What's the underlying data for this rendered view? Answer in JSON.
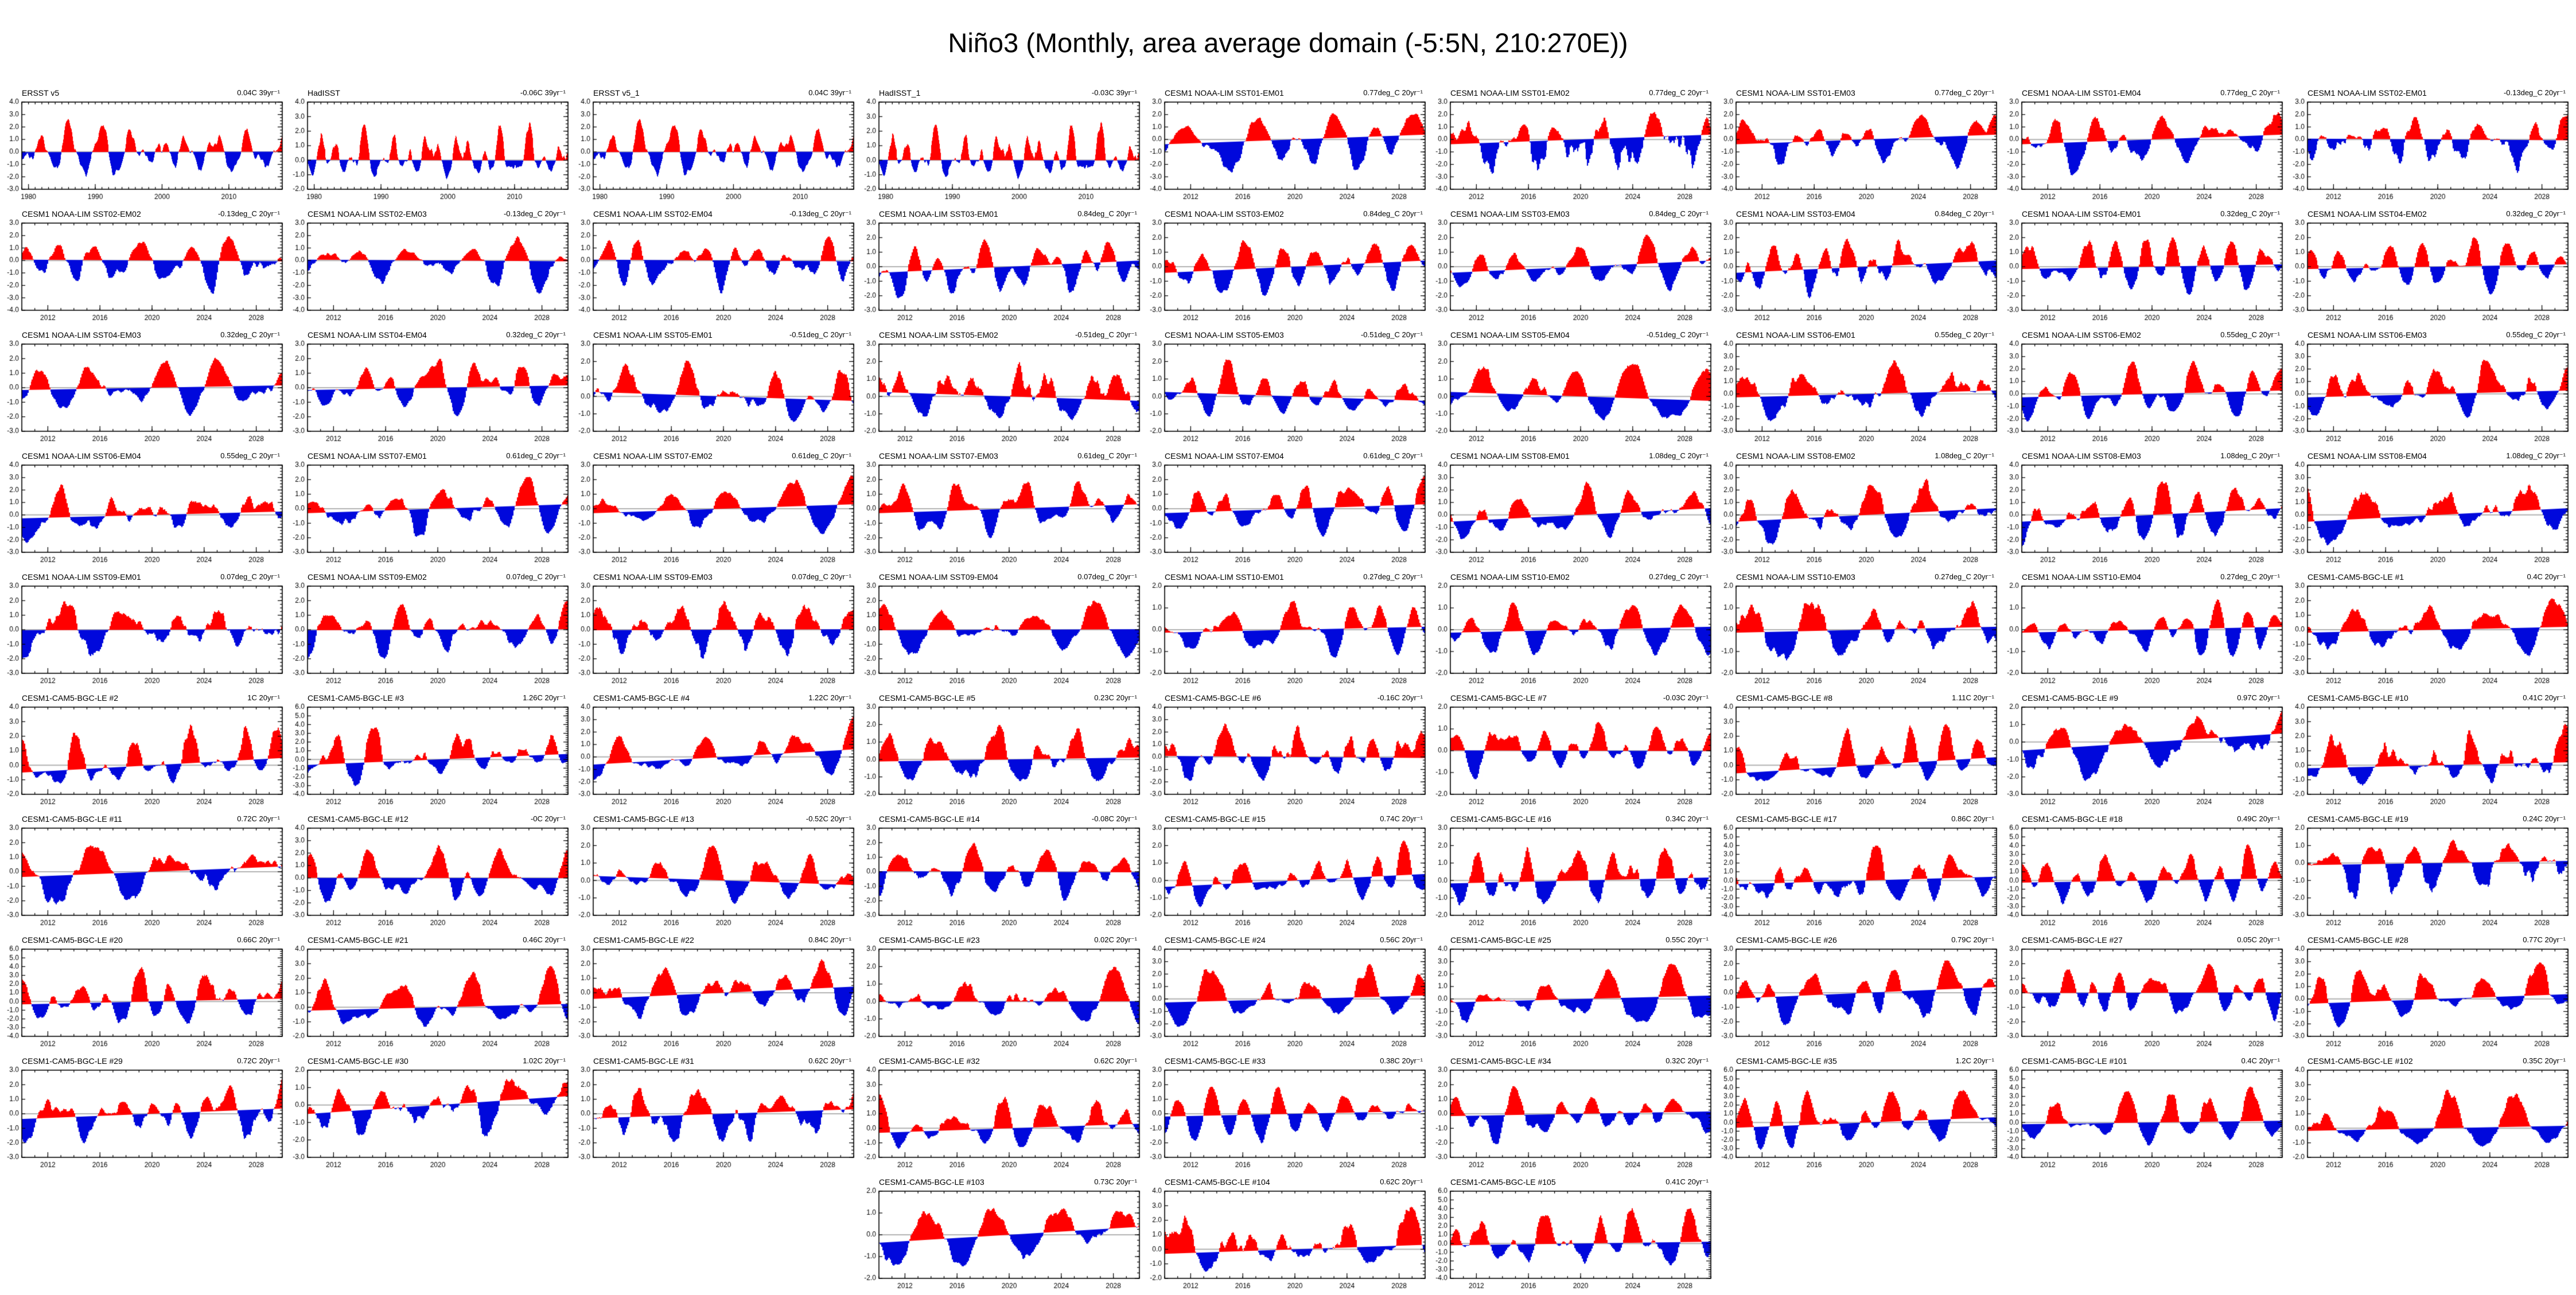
{
  "page": {
    "title": "Niño3 (Monthly, area average domain (-5:5N, 210:270E))",
    "background": "#ffffff"
  },
  "chart_data": {
    "type": "area",
    "description": "Small-multiples grid of monthly Niño3 SST anomaly time series. Each panel: anomalies filled red above the linear trend baseline and blue below it, gray horizontal line at zero, linear trend printed at top right.",
    "layout": {
      "columns": 9,
      "rows": 10,
      "last_row_columns": [
        4,
        5,
        6
      ],
      "grid": true,
      "legend": "none"
    },
    "colors": {
      "positive_fill": "#ff0000",
      "negative_fill": "#0008dc",
      "zero_line": "#b3b3b3",
      "frame": "#000000",
      "text": "#000000"
    },
    "x_obs": {
      "range": [
        1979,
        2018
      ],
      "ticks": [
        1980,
        1990,
        2000,
        2010
      ]
    },
    "x_model": {
      "range": [
        2010,
        2030
      ],
      "ticks": [
        2012,
        2016,
        2020,
        2024,
        2028
      ]
    },
    "y_tick_step": 1.0,
    "units": "deg C anomaly",
    "panels": [
      {
        "title": "ERSST v5",
        "trend": "0.04C 39yr⁻¹",
        "t": 0.04,
        "ylo": -3,
        "yhi": 4,
        "era": "obs",
        "seed": 1
      },
      {
        "title": "HadISST",
        "trend": "-0.06C 39yr⁻¹",
        "t": -0.06,
        "ylo": -2,
        "yhi": 4,
        "era": "obs",
        "seed": 2
      },
      {
        "title": "ERSST v5_1",
        "trend": "0.04C 39yr⁻¹",
        "t": 0.04,
        "ylo": -3,
        "yhi": 4,
        "era": "obs",
        "seed": 1
      },
      {
        "title": "HadISST_1",
        "trend": "-0.03C 39yr⁻¹",
        "t": -0.03,
        "ylo": -2,
        "yhi": 4,
        "era": "obs",
        "seed": 2
      },
      {
        "title": "CESM1 NOAA-LIM SST01-EM01",
        "trend": "0.77deg_C 20yr⁻¹",
        "t": 0.77,
        "ylo": -4,
        "yhi": 3,
        "era": "model",
        "seed": 5
      },
      {
        "title": "CESM1 NOAA-LIM SST01-EM02",
        "trend": "0.77deg_C 20yr⁻¹",
        "t": 0.77,
        "ylo": -4,
        "yhi": 3,
        "era": "model",
        "seed": 6
      },
      {
        "title": "CESM1 NOAA-LIM SST01-EM03",
        "trend": "0.77deg_C 20yr⁻¹",
        "t": 0.77,
        "ylo": -4,
        "yhi": 3,
        "era": "model",
        "seed": 7
      },
      {
        "title": "CESM1 NOAA-LIM SST01-EM04",
        "trend": "0.77deg_C 20yr⁻¹",
        "t": 0.77,
        "ylo": -4,
        "yhi": 3,
        "era": "model",
        "seed": 8
      },
      {
        "title": "CESM1 NOAA-LIM SST02-EM01",
        "trend": "-0.13deg_C 20yr⁻¹",
        "t": -0.13,
        "ylo": -4,
        "yhi": 3,
        "era": "model",
        "seed": 9
      },
      {
        "title": "CESM1 NOAA-LIM SST02-EM02",
        "trend": "-0.13deg_C 20yr⁻¹",
        "t": -0.13,
        "ylo": -4,
        "yhi": 3,
        "era": "model",
        "seed": 10
      },
      {
        "title": "CESM1 NOAA-LIM SST02-EM03",
        "trend": "-0.13deg_C 20yr⁻¹",
        "t": -0.13,
        "ylo": -4,
        "yhi": 3,
        "era": "model",
        "seed": 11
      },
      {
        "title": "CESM1 NOAA-LIM SST02-EM04",
        "trend": "-0.13deg_C 20yr⁻¹",
        "t": -0.13,
        "ylo": -4,
        "yhi": 3,
        "era": "model",
        "seed": 12
      },
      {
        "title": "CESM1 NOAA-LIM SST03-EM01",
        "trend": "0.84deg_C 20yr⁻¹",
        "t": 0.84,
        "ylo": -3,
        "yhi": 3,
        "era": "model",
        "seed": 13
      },
      {
        "title": "CESM1 NOAA-LIM SST03-EM02",
        "trend": "0.84deg_C 20yr⁻¹",
        "t": 0.84,
        "ylo": -3,
        "yhi": 3,
        "era": "model",
        "seed": 14
      },
      {
        "title": "CESM1 NOAA-LIM SST03-EM03",
        "trend": "0.84deg_C 20yr⁻¹",
        "t": 0.84,
        "ylo": -3,
        "yhi": 3,
        "era": "model",
        "seed": 15
      },
      {
        "title": "CESM1 NOAA-LIM SST03-EM04",
        "trend": "0.84deg_C 20yr⁻¹",
        "t": 0.84,
        "ylo": -3,
        "yhi": 3,
        "era": "model",
        "seed": 16
      },
      {
        "title": "CESM1 NOAA-LIM SST04-EM01",
        "trend": "0.32deg_C 20yr⁻¹",
        "t": 0.32,
        "ylo": -3,
        "yhi": 3,
        "era": "model",
        "seed": 17
      },
      {
        "title": "CESM1 NOAA-LIM SST04-EM02",
        "trend": "0.32deg_C 20yr⁻¹",
        "t": 0.32,
        "ylo": -3,
        "yhi": 3,
        "era": "model",
        "seed": 18
      },
      {
        "title": "CESM1 NOAA-LIM SST04-EM03",
        "trend": "0.32deg_C 20yr⁻¹",
        "t": 0.32,
        "ylo": -3,
        "yhi": 3,
        "era": "model",
        "seed": 19
      },
      {
        "title": "CESM1 NOAA-LIM SST04-EM04",
        "trend": "0.32deg_C 20yr⁻¹",
        "t": 0.32,
        "ylo": -3,
        "yhi": 3,
        "era": "model",
        "seed": 20
      },
      {
        "title": "CESM1 NOAA-LIM SST05-EM01",
        "trend": "-0.51deg_C 20yr⁻¹",
        "t": -0.51,
        "ylo": -2,
        "yhi": 3,
        "era": "model",
        "seed": 21
      },
      {
        "title": "CESM1 NOAA-LIM SST05-EM02",
        "trend": "-0.51deg_C 20yr⁻¹",
        "t": -0.51,
        "ylo": -2,
        "yhi": 3,
        "era": "model",
        "seed": 22
      },
      {
        "title": "CESM1 NOAA-LIM SST05-EM03",
        "trend": "-0.51deg_C 20yr⁻¹",
        "t": -0.51,
        "ylo": -2,
        "yhi": 3,
        "era": "model",
        "seed": 23
      },
      {
        "title": "CESM1 NOAA-LIM SST05-EM04",
        "trend": "-0.51deg_C 20yr⁻¹",
        "t": -0.51,
        "ylo": -2,
        "yhi": 3,
        "era": "model",
        "seed": 24
      },
      {
        "title": "CESM1 NOAA-LIM SST06-EM01",
        "trend": "0.55deg_C 20yr⁻¹",
        "t": 0.55,
        "ylo": -3,
        "yhi": 4,
        "era": "model",
        "seed": 25
      },
      {
        "title": "CESM1 NOAA-LIM SST06-EM02",
        "trend": "0.55deg_C 20yr⁻¹",
        "t": 0.55,
        "ylo": -3,
        "yhi": 4,
        "era": "model",
        "seed": 26
      },
      {
        "title": "CESM1 NOAA-LIM SST06-EM03",
        "trend": "0.55deg_C 20yr⁻¹",
        "t": 0.55,
        "ylo": -3,
        "yhi": 4,
        "era": "model",
        "seed": 27
      },
      {
        "title": "CESM1 NOAA-LIM SST06-EM04",
        "trend": "0.55deg_C 20yr⁻¹",
        "t": 0.55,
        "ylo": -3,
        "yhi": 4,
        "era": "model",
        "seed": 28
      },
      {
        "title": "CESM1 NOAA-LIM SST07-EM01",
        "trend": "0.61deg_C 20yr⁻¹",
        "t": 0.61,
        "ylo": -3,
        "yhi": 3,
        "era": "model",
        "seed": 29
      },
      {
        "title": "CESM1 NOAA-LIM SST07-EM02",
        "trend": "0.61deg_C 20yr⁻¹",
        "t": 0.61,
        "ylo": -3,
        "yhi": 3,
        "era": "model",
        "seed": 30
      },
      {
        "title": "CESM1 NOAA-LIM SST07-EM03",
        "trend": "0.61deg_C 20yr⁻¹",
        "t": 0.61,
        "ylo": -3,
        "yhi": 3,
        "era": "model",
        "seed": 31
      },
      {
        "title": "CESM1 NOAA-LIM SST07-EM04",
        "trend": "0.61deg_C 20yr⁻¹",
        "t": 0.61,
        "ylo": -3,
        "yhi": 3,
        "era": "model",
        "seed": 32
      },
      {
        "title": "CESM1 NOAA-LIM SST08-EM01",
        "trend": "1.08deg_C 20yr⁻¹",
        "t": 1.08,
        "ylo": -3,
        "yhi": 4,
        "era": "model",
        "seed": 33
      },
      {
        "title": "CESM1 NOAA-LIM SST08-EM02",
        "trend": "1.08deg_C 20yr⁻¹",
        "t": 1.08,
        "ylo": -3,
        "yhi": 4,
        "era": "model",
        "seed": 34
      },
      {
        "title": "CESM1 NOAA-LIM SST08-EM03",
        "trend": "1.08deg_C 20yr⁻¹",
        "t": 1.08,
        "ylo": -3,
        "yhi": 4,
        "era": "model",
        "seed": 35
      },
      {
        "title": "CESM1 NOAA-LIM SST08-EM04",
        "trend": "1.08deg_C 20yr⁻¹",
        "t": 1.08,
        "ylo": -3,
        "yhi": 4,
        "era": "model",
        "seed": 36
      },
      {
        "title": "CESM1 NOAA-LIM SST09-EM01",
        "trend": "0.07deg_C 20yr⁻¹",
        "t": 0.07,
        "ylo": -3,
        "yhi": 3,
        "era": "model",
        "seed": 37
      },
      {
        "title": "CESM1 NOAA-LIM SST09-EM02",
        "trend": "0.07deg_C 20yr⁻¹",
        "t": 0.07,
        "ylo": -3,
        "yhi": 3,
        "era": "model",
        "seed": 38
      },
      {
        "title": "CESM1 NOAA-LIM SST09-EM03",
        "trend": "0.07deg_C 20yr⁻¹",
        "t": 0.07,
        "ylo": -3,
        "yhi": 3,
        "era": "model",
        "seed": 39
      },
      {
        "title": "CESM1 NOAA-LIM SST09-EM04",
        "trend": "0.07deg_C 20yr⁻¹",
        "t": 0.07,
        "ylo": -3,
        "yhi": 3,
        "era": "model",
        "seed": 40
      },
      {
        "title": "CESM1 NOAA-LIM SST10-EM01",
        "trend": "0.27deg_C 20yr⁻¹",
        "t": 0.27,
        "ylo": -2,
        "yhi": 2,
        "era": "model",
        "seed": 41
      },
      {
        "title": "CESM1 NOAA-LIM SST10-EM02",
        "trend": "0.27deg_C 20yr⁻¹",
        "t": 0.27,
        "ylo": -2,
        "yhi": 2,
        "era": "model",
        "seed": 42
      },
      {
        "title": "CESM1 NOAA-LIM SST10-EM03",
        "trend": "0.27deg_C 20yr⁻¹",
        "t": 0.27,
        "ylo": -2,
        "yhi": 2,
        "era": "model",
        "seed": 43
      },
      {
        "title": "CESM1 NOAA-LIM SST10-EM04",
        "trend": "0.27deg_C 20yr⁻¹",
        "t": 0.27,
        "ylo": -2,
        "yhi": 2,
        "era": "model",
        "seed": 44
      },
      {
        "title": "CESM1-CAM5-BGC-LE #1",
        "trend": "0.4C 20yr⁻¹",
        "t": 0.4,
        "ylo": -3,
        "yhi": 3,
        "era": "model",
        "seed": 45
      },
      {
        "title": "CESM1-CAM5-BGC-LE #2",
        "trend": "1C 20yr⁻¹",
        "t": 1.0,
        "ylo": -2,
        "yhi": 4,
        "era": "model",
        "seed": 46
      },
      {
        "title": "CESM1-CAM5-BGC-LE #3",
        "trend": "1.26C 20yr⁻¹",
        "t": 1.26,
        "ylo": -4,
        "yhi": 6,
        "era": "model",
        "seed": 47
      },
      {
        "title": "CESM1-CAM5-BGC-LE #4",
        "trend": "1.22C 20yr⁻¹",
        "t": 1.22,
        "ylo": -3,
        "yhi": 4,
        "era": "model",
        "seed": 48
      },
      {
        "title": "CESM1-CAM5-BGC-LE #5",
        "trend": "0.23C 20yr⁻¹",
        "t": 0.23,
        "ylo": -2,
        "yhi": 3,
        "era": "model",
        "seed": 49
      },
      {
        "title": "CESM1-CAM5-BGC-LE #6",
        "trend": "-0.16C 20yr⁻¹",
        "t": -0.16,
        "ylo": -3,
        "yhi": 4,
        "era": "model",
        "seed": 50
      },
      {
        "title": "CESM1-CAM5-BGC-LE #7",
        "trend": "-0.03C 20yr⁻¹",
        "t": -0.03,
        "ylo": -2,
        "yhi": 2,
        "era": "model",
        "seed": 51
      },
      {
        "title": "CESM1-CAM5-BGC-LE #8",
        "trend": "1.11C 20yr⁻¹",
        "t": 1.11,
        "ylo": -2,
        "yhi": 4,
        "era": "model",
        "seed": 52
      },
      {
        "title": "CESM1-CAM5-BGC-LE #9",
        "trend": "0.97C 20yr⁻¹",
        "t": 0.97,
        "ylo": -3,
        "yhi": 2,
        "era": "model",
        "seed": 53
      },
      {
        "title": "CESM1-CAM5-BGC-LE #10",
        "trend": "0.41C 20yr⁻¹",
        "t": 0.41,
        "ylo": -2,
        "yhi": 4,
        "era": "model",
        "seed": 54
      },
      {
        "title": "CESM1-CAM5-BGC-LE #11",
        "trend": "0.72C 20yr⁻¹",
        "t": 0.72,
        "ylo": -3,
        "yhi": 3,
        "era": "model",
        "seed": 55
      },
      {
        "title": "CESM1-CAM5-BGC-LE #12",
        "trend": "-0C 20yr⁻¹",
        "t": -0.02,
        "ylo": -3,
        "yhi": 4,
        "era": "model",
        "seed": 56
      },
      {
        "title": "CESM1-CAM5-BGC-LE #13",
        "trend": "-0.52C 20yr⁻¹",
        "t": -0.52,
        "ylo": -2,
        "yhi": 3,
        "era": "model",
        "seed": 57
      },
      {
        "title": "CESM1-CAM5-BGC-LE #14",
        "trend": "-0.08C 20yr⁻¹",
        "t": -0.08,
        "ylo": -3,
        "yhi": 3,
        "era": "model",
        "seed": 58
      },
      {
        "title": "CESM1-CAM5-BGC-LE #15",
        "trend": "0.74C 20yr⁻¹",
        "t": 0.74,
        "ylo": -2,
        "yhi": 3,
        "era": "model",
        "seed": 59
      },
      {
        "title": "CESM1-CAM5-BGC-LE #16",
        "trend": "0.34C 20yr⁻¹",
        "t": 0.34,
        "ylo": -2,
        "yhi": 3,
        "era": "model",
        "seed": 60
      },
      {
        "title": "CESM1-CAM5-BGC-LE #17",
        "trend": "0.86C 20yr⁻¹",
        "t": 0.86,
        "ylo": -4,
        "yhi": 6,
        "era": "model",
        "seed": 61
      },
      {
        "title": "CESM1-CAM5-BGC-LE #18",
        "trend": "0.49C 20yr⁻¹",
        "t": 0.49,
        "ylo": -4,
        "yhi": 6,
        "era": "model",
        "seed": 62
      },
      {
        "title": "CESM1-CAM5-BGC-LE #19",
        "trend": "0.24C 20yr⁻¹",
        "t": 0.24,
        "ylo": -3,
        "yhi": 2,
        "era": "model",
        "seed": 63
      },
      {
        "title": "CESM1-CAM5-BGC-LE #20",
        "trend": "0.66C 20yr⁻¹",
        "t": 0.66,
        "ylo": -4,
        "yhi": 6,
        "era": "model",
        "seed": 64
      },
      {
        "title": "CESM1-CAM5-BGC-LE #21",
        "trend": "0.46C 20yr⁻¹",
        "t": 0.46,
        "ylo": -2,
        "yhi": 4,
        "era": "model",
        "seed": 65
      },
      {
        "title": "CESM1-CAM5-BGC-LE #22",
        "trend": "0.84C 20yr⁻¹",
        "t": 0.84,
        "ylo": -3,
        "yhi": 3,
        "era": "model",
        "seed": 66
      },
      {
        "title": "CESM1-CAM5-BGC-LE #23",
        "trend": "0.02C 20yr⁻¹",
        "t": 0.02,
        "ylo": -2,
        "yhi": 3,
        "era": "model",
        "seed": 67
      },
      {
        "title": "CESM1-CAM5-BGC-LE #24",
        "trend": "0.56C 20yr⁻¹",
        "t": 0.56,
        "ylo": -3,
        "yhi": 4,
        "era": "model",
        "seed": 68
      },
      {
        "title": "CESM1-CAM5-BGC-LE #25",
        "trend": "0.55C 20yr⁻¹",
        "t": 0.55,
        "ylo": -3,
        "yhi": 4,
        "era": "model",
        "seed": 69
      },
      {
        "title": "CESM1-CAM5-BGC-LE #26",
        "trend": "0.79C 20yr⁻¹",
        "t": 0.79,
        "ylo": -3,
        "yhi": 3,
        "era": "model",
        "seed": 70
      },
      {
        "title": "CESM1-CAM5-BGC-LE #27",
        "trend": "0.05C 20yr⁻¹",
        "t": 0.05,
        "ylo": -3,
        "yhi": 3,
        "era": "model",
        "seed": 71
      },
      {
        "title": "CESM1-CAM5-BGC-LE #28",
        "trend": "0.77C 20yr⁻¹",
        "t": 0.77,
        "ylo": -3,
        "yhi": 4,
        "era": "model",
        "seed": 72
      },
      {
        "title": "CESM1-CAM5-BGC-LE #29",
        "trend": "0.72C 20yr⁻¹",
        "t": 0.72,
        "ylo": -3,
        "yhi": 3,
        "era": "model",
        "seed": 73
      },
      {
        "title": "CESM1-CAM5-BGC-LE #30",
        "trend": "1.02C 20yr⁻¹",
        "t": 1.02,
        "ylo": -3,
        "yhi": 2,
        "era": "model",
        "seed": 74
      },
      {
        "title": "CESM1-CAM5-BGC-LE #31",
        "trend": "0.62C 20yr⁻¹",
        "t": 0.62,
        "ylo": -3,
        "yhi": 3,
        "era": "model",
        "seed": 75
      },
      {
        "title": "CESM1-CAM5-BGC-LE #32",
        "trend": "0.62C 20yr⁻¹",
        "t": 0.62,
        "ylo": -2,
        "yhi": 4,
        "era": "model",
        "seed": 76
      },
      {
        "title": "CESM1-CAM5-BGC-LE #33",
        "trend": "0.38C 20yr⁻¹",
        "t": 0.38,
        "ylo": -3,
        "yhi": 3,
        "era": "model",
        "seed": 77
      },
      {
        "title": "CESM1-CAM5-BGC-LE #34",
        "trend": "0.32C 20yr⁻¹",
        "t": 0.32,
        "ylo": -3,
        "yhi": 3,
        "era": "model",
        "seed": 78
      },
      {
        "title": "CESM1-CAM5-BGC-LE #35",
        "trend": "1.2C 20yr⁻¹",
        "t": 1.2,
        "ylo": -4,
        "yhi": 6,
        "era": "model",
        "seed": 79
      },
      {
        "title": "CESM1-CAM5-BGC-LE #101",
        "trend": "0.4C 20yr⁻¹",
        "t": 0.4,
        "ylo": -4,
        "yhi": 6,
        "era": "model",
        "seed": 80
      },
      {
        "title": "CESM1-CAM5-BGC-LE #102",
        "trend": "0.35C 20yr⁻¹",
        "t": 0.35,
        "ylo": -2,
        "yhi": 4,
        "era": "model",
        "seed": 81
      },
      {
        "title": "CESM1-CAM5-BGC-LE #103",
        "trend": "0.73C 20yr⁻¹",
        "t": 0.73,
        "ylo": -2,
        "yhi": 2,
        "era": "model",
        "seed": 82
      },
      {
        "title": "CESM1-CAM5-BGC-LE #104",
        "trend": "0.62C 20yr⁻¹",
        "t": 0.62,
        "ylo": -2,
        "yhi": 4,
        "era": "model",
        "seed": 83
      },
      {
        "title": "CESM1-CAM5-BGC-LE #105",
        "trend": "0.41C 20yr⁻¹",
        "t": 0.41,
        "ylo": -4,
        "yhi": 6,
        "era": "model",
        "seed": 84
      }
    ]
  }
}
